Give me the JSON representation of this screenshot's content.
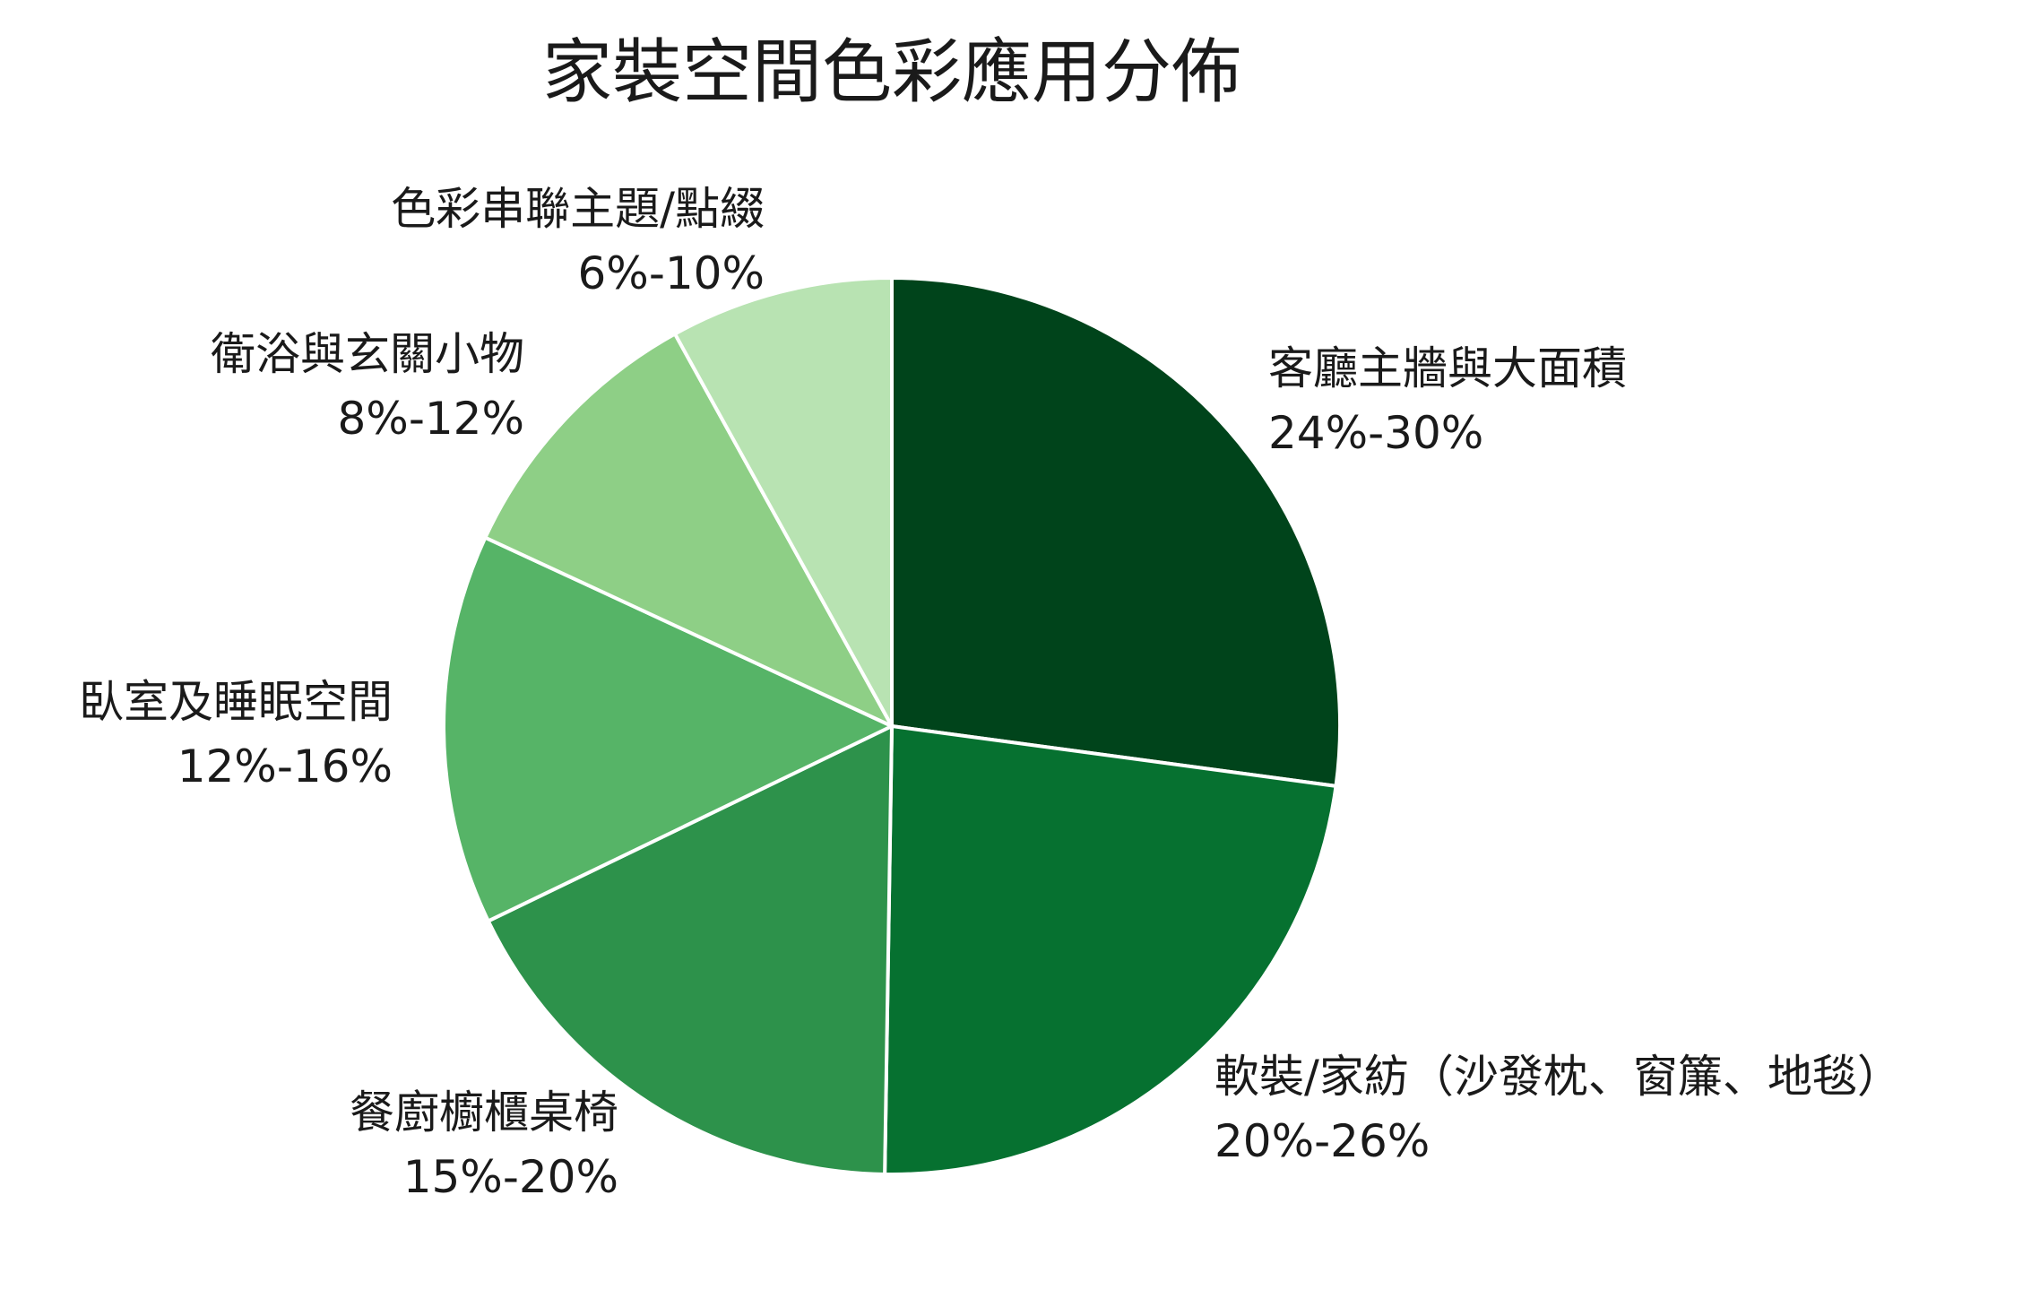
{
  "chart_data": {
    "type": "pie",
    "title": "家裝空間色彩應用分佈",
    "slices": [
      {
        "label": "客廳主牆與大面積",
        "range": "24%-30%",
        "value": 27,
        "color": "#00441b"
      },
      {
        "label": "軟裝/家紡（沙發枕、窗簾、地毯）",
        "range": "20%-26%",
        "value": 23,
        "color": "#067130"
      },
      {
        "label": "餐廚櫥櫃桌椅",
        "range": "15%-20%",
        "value": 17.5,
        "color": "#2d924b"
      },
      {
        "label": "臥室及睡眠空間",
        "range": "12%-16%",
        "value": 14,
        "color": "#56b467"
      },
      {
        "label": "衛浴與玄關小物",
        "range": "8%-12%",
        "value": 10,
        "color": "#8ecf86"
      },
      {
        "label": "色彩串聯主題/點綴",
        "range": "6%-10%",
        "value": 8,
        "color": "#b8e3b2"
      }
    ],
    "start_angle": "12 o'clock",
    "direction": "clockwise",
    "slice_border_color": "#ffffff",
    "legend": "none"
  }
}
